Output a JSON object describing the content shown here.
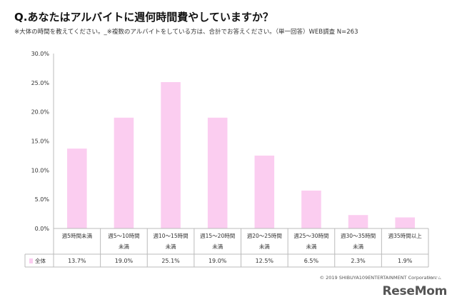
{
  "title": "Q.あなたはアルバイトに週何時間費やしていますか？",
  "subtitle": "※大体の時間を教えてください。_※複数のアルバイトをしている方は、合計でお答えください。（単一回答）WEB調査 N=263",
  "copyright": "© 2019 SHIBUYA109ENTERTAINMENT Corporation",
  "watermark": "ReseMom",
  "watermark_sup": "リセマム",
  "chart_data": {
    "type": "bar",
    "categories": [
      [
        "週5時間未満"
      ],
      [
        "週5～10時間",
        "未満"
      ],
      [
        "週10～15時間",
        "未満"
      ],
      [
        "週15～20時間",
        "未満"
      ],
      [
        "週20～25時間",
        "未満"
      ],
      [
        "週25～30時間",
        "未満"
      ],
      [
        "週30～35時間",
        "未満"
      ],
      [
        "週35時間以上"
      ]
    ],
    "series": [
      {
        "name": "全体",
        "values": [
          13.7,
          19.0,
          25.1,
          19.0,
          12.5,
          6.5,
          2.3,
          1.9
        ],
        "labels": [
          "13.7%",
          "19.0%",
          "25.1%",
          "19.0%",
          "12.5%",
          "6.5%",
          "2.3%",
          "1.9%"
        ]
      }
    ],
    "ylim": [
      0,
      30
    ],
    "yticks": [
      "0.0%",
      "5.0%",
      "10.0%",
      "15.0%",
      "20.0%",
      "25.0%",
      "30.0%"
    ],
    "ytick_values": [
      0,
      5,
      10,
      15,
      20,
      25,
      30
    ],
    "grid": false,
    "legend": "table-row",
    "colors": {
      "bar": "#fbcdf0",
      "axis": "#bbbbbb",
      "text": "#333333"
    }
  }
}
